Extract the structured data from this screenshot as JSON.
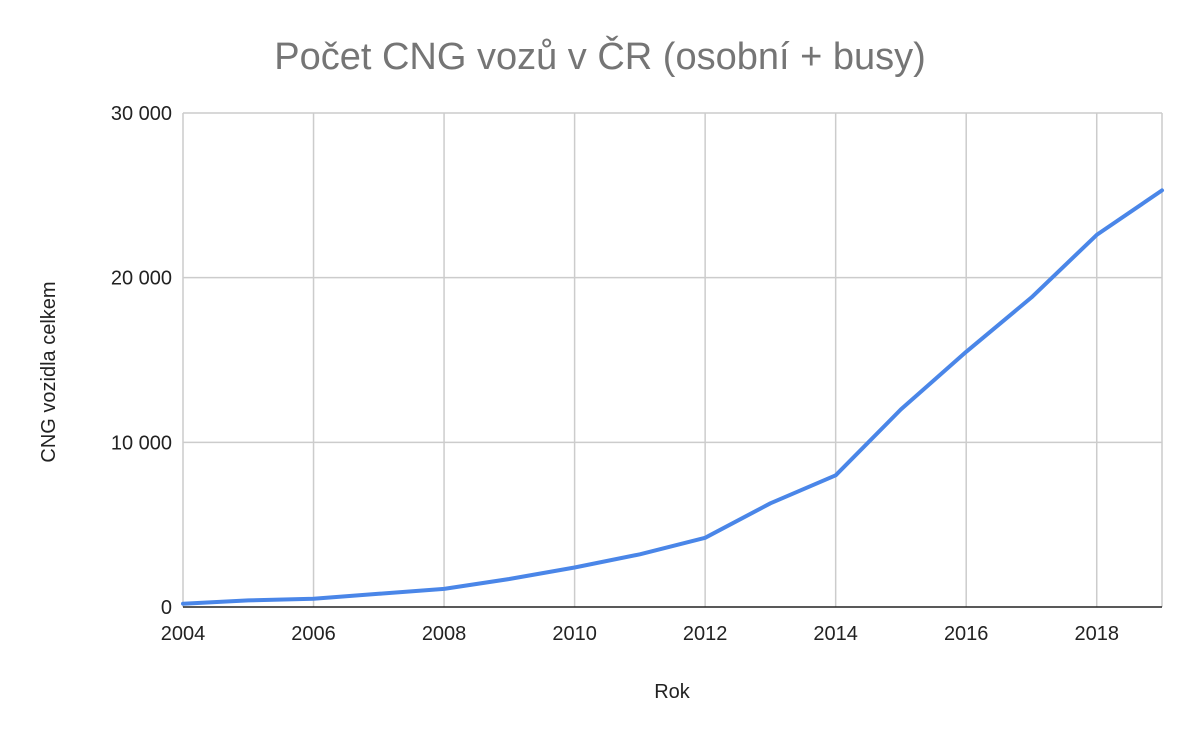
{
  "chart_data": {
    "type": "line",
    "title": "Počet CNG vozů v ČR (osobní + busy)",
    "xlabel": "Rok",
    "ylabel": "CNG vozidla celkem",
    "xlim": [
      2004,
      2019
    ],
    "ylim": [
      0,
      30000
    ],
    "grid": true,
    "legend": "none",
    "x_ticks": [
      2004,
      2006,
      2008,
      2010,
      2012,
      2014,
      2016,
      2018
    ],
    "x_tick_labels": [
      "2004",
      "2006",
      "2008",
      "2010",
      "2012",
      "2014",
      "2016",
      "2018"
    ],
    "y_ticks": [
      0,
      10000,
      20000,
      30000
    ],
    "y_tick_labels": [
      "0",
      "10 000",
      "20 000",
      "30 000"
    ],
    "colors": {
      "series": "#4a86e8",
      "grid": "#cccccc",
      "title": "#757575",
      "text": "#222222"
    },
    "series": [
      {
        "x": [
          2004,
          2005,
          2006,
          2007,
          2008,
          2009,
          2010,
          2011,
          2012,
          2013,
          2014,
          2015,
          2016,
          2017,
          2018,
          2019
        ],
        "values": [
          200,
          400,
          500,
          800,
          1100,
          1700,
          2400,
          3200,
          4200,
          6300,
          8000,
          12000,
          15500,
          18800,
          22600,
          25300
        ]
      }
    ]
  }
}
